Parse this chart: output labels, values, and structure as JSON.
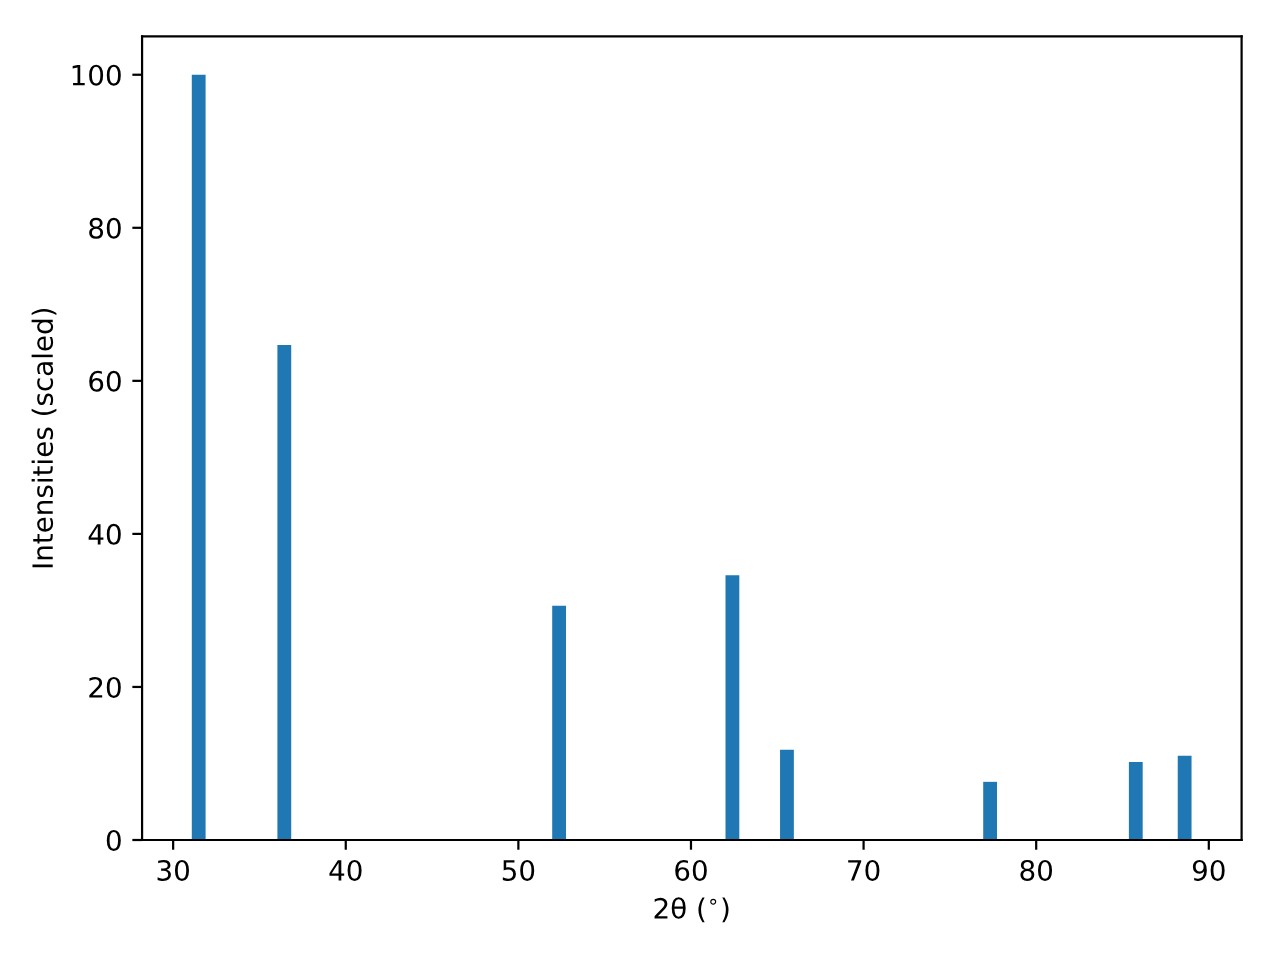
{
  "chart_data": {
    "type": "bar",
    "xlabel": "2θ ($^{∘}$)",
    "ylabel": "Intensities (scaled)",
    "x": [
      31.48,
      36.44,
      52.36,
      62.4,
      65.56,
      77.33,
      85.77,
      88.6
    ],
    "values": [
      100,
      64.7,
      30.6,
      34.6,
      11.8,
      7.6,
      10.2,
      11.0
    ],
    "color": "#1f77b4",
    "xlim": [
      28.2,
      91.9
    ],
    "xticks": [
      30,
      40,
      50,
      60,
      70,
      80,
      90
    ],
    "ylim": [
      0,
      105
    ],
    "yticks": [
      0,
      20,
      40,
      60,
      80,
      100
    ],
    "grid": false,
    "legend": false
  }
}
